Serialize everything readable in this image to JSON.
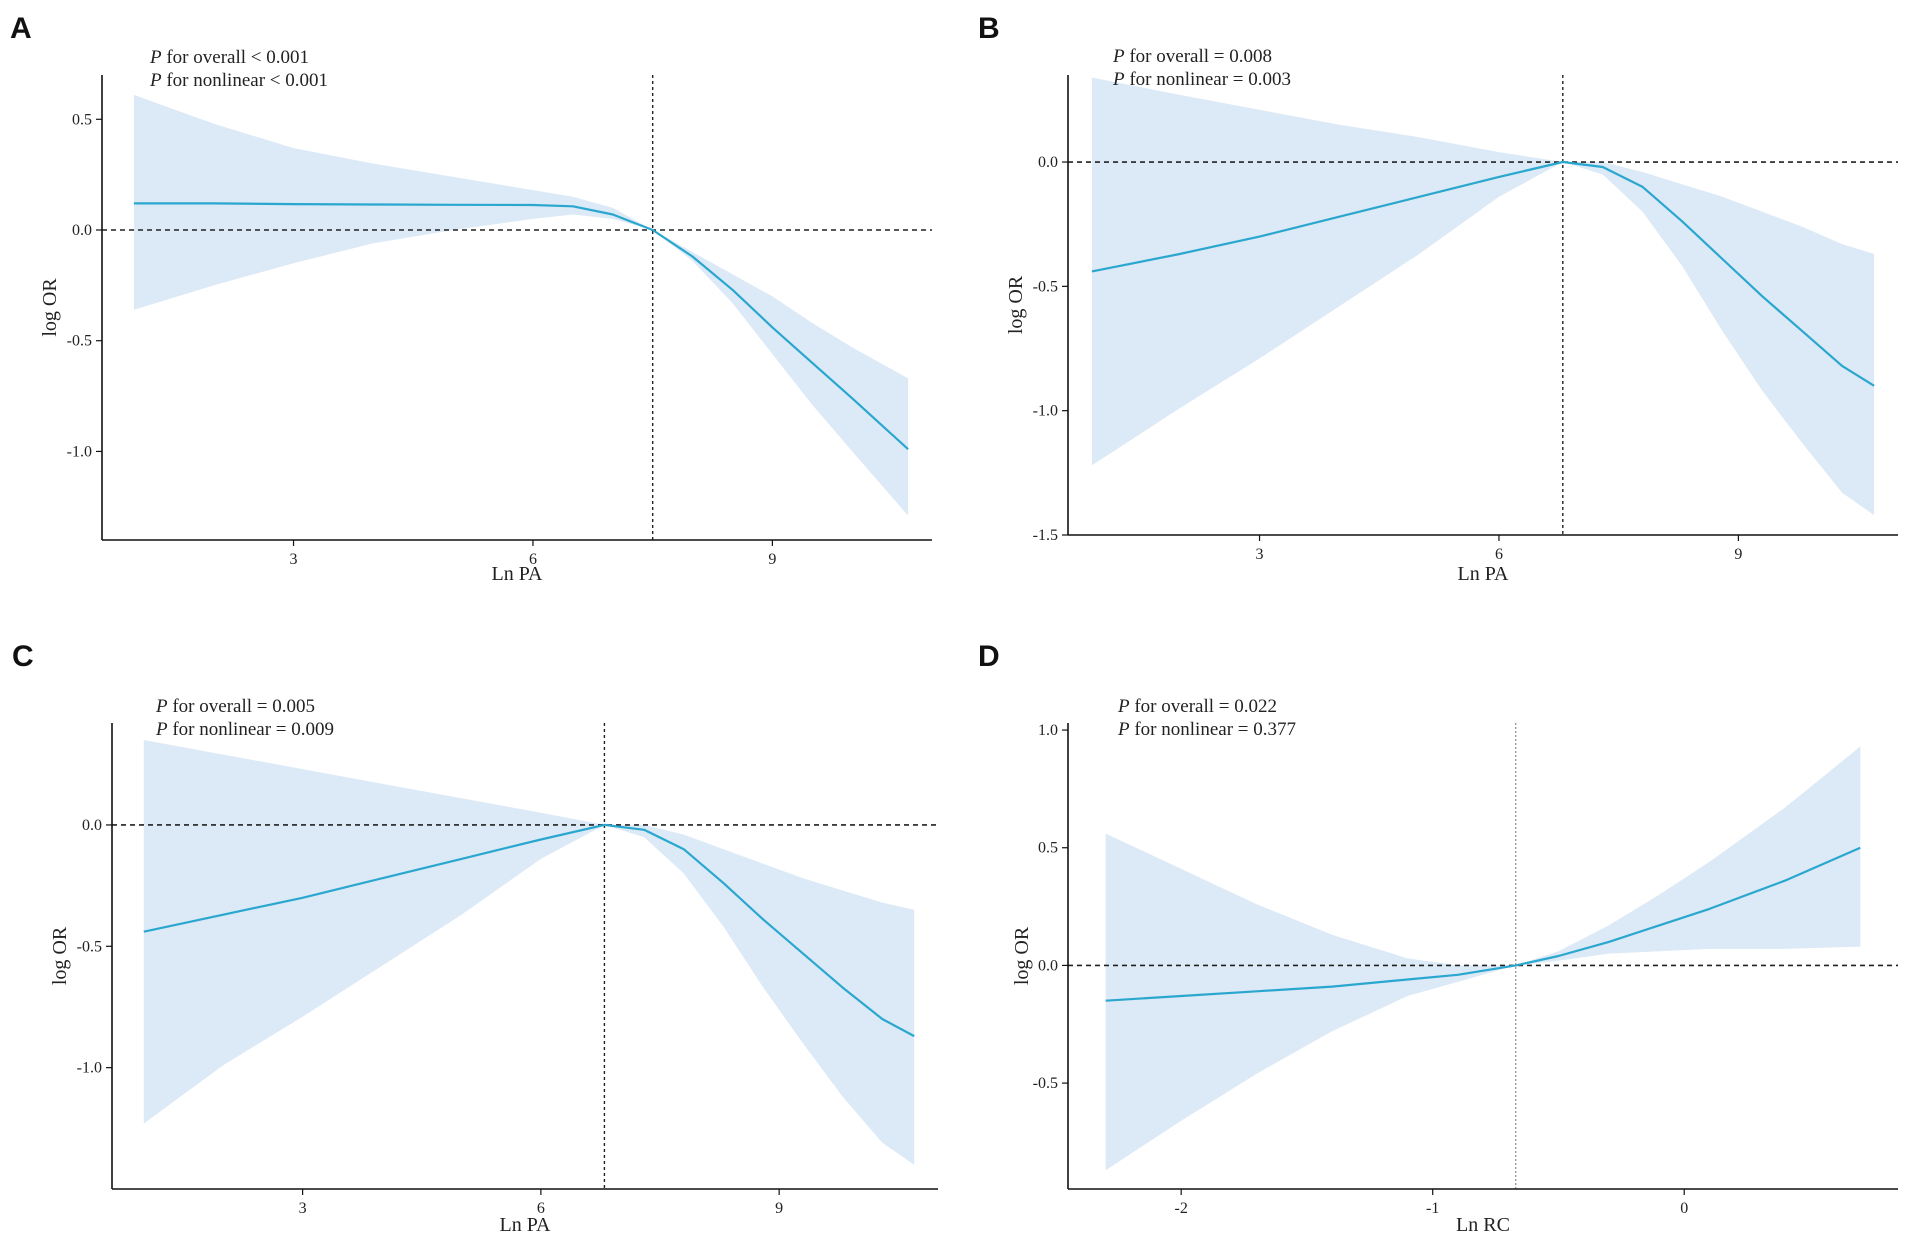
{
  "colors": {
    "line": "#2aa7cf",
    "band": "#dce9f6",
    "axis": "#111111",
    "ref": "#222222"
  },
  "chart_data": [
    {
      "panel": "A",
      "type": "line",
      "xlabel": "Ln PA",
      "ylabel": "log OR",
      "xlim": [
        0.6,
        11.0
      ],
      "ylim": [
        -1.4,
        0.7
      ],
      "xticks": [
        3,
        6,
        9
      ],
      "yticks": [
        0.5,
        0.0,
        -0.5,
        -1.0
      ],
      "ytick_labels": [
        "0.5",
        "0.0",
        "-0.5",
        "-1.0"
      ],
      "annotations": [
        {
          "p": "P",
          "text": " for overall < 0.001"
        },
        {
          "p": "P",
          "text": " for nonlinear < 0.001"
        }
      ],
      "vline": 7.5,
      "vline_style": "dark",
      "hline": 0,
      "x": [
        1.0,
        2.0,
        3.0,
        4.0,
        5.0,
        6.0,
        6.5,
        7.0,
        7.5,
        8.0,
        8.5,
        9.0,
        9.5,
        10.0,
        10.7
      ],
      "y": [
        0.12,
        0.12,
        0.117,
        0.115,
        0.114,
        0.113,
        0.107,
        0.07,
        0.0,
        -0.12,
        -0.27,
        -0.44,
        -0.6,
        -0.76,
        -0.99
      ],
      "lower": [
        -0.36,
        -0.25,
        -0.15,
        -0.06,
        0.0,
        0.05,
        0.07,
        0.05,
        0.0,
        -0.14,
        -0.33,
        -0.56,
        -0.79,
        -1.0,
        -1.29
      ],
      "upper": [
        0.61,
        0.48,
        0.37,
        0.3,
        0.24,
        0.18,
        0.15,
        0.1,
        0.0,
        -0.1,
        -0.2,
        -0.3,
        -0.42,
        -0.53,
        -0.67
      ]
    },
    {
      "panel": "B",
      "type": "line",
      "xlabel": "Ln PA",
      "ylabel": "log OR",
      "xlim": [
        0.6,
        11.0
      ],
      "ylim": [
        -1.5,
        0.35
      ],
      "xticks": [
        3,
        6,
        9
      ],
      "yticks": [
        0.0,
        -0.5,
        -1.0,
        -1.5
      ],
      "ytick_labels": [
        "0.0",
        "-0.5",
        "-1.0",
        "-1.5"
      ],
      "annotations": [
        {
          "p": "P",
          "text": " for overall = 0.008"
        },
        {
          "p": "P",
          "text": " for nonlinear = 0.003"
        }
      ],
      "vline": 6.8,
      "vline_style": "dark",
      "hline": 0,
      "x": [
        0.9,
        2.0,
        3.0,
        4.0,
        5.0,
        6.0,
        6.8,
        7.3,
        7.8,
        8.3,
        8.8,
        9.3,
        9.8,
        10.3,
        10.7
      ],
      "y": [
        -0.44,
        -0.37,
        -0.3,
        -0.22,
        -0.14,
        -0.06,
        0.0,
        -0.02,
        -0.1,
        -0.24,
        -0.39,
        -0.54,
        -0.68,
        -0.82,
        -0.9
      ],
      "lower": [
        -1.22,
        -0.99,
        -0.79,
        -0.58,
        -0.37,
        -0.14,
        0.0,
        -0.05,
        -0.2,
        -0.42,
        -0.68,
        -0.92,
        -1.13,
        -1.33,
        -1.42
      ],
      "upper": [
        0.34,
        0.27,
        0.21,
        0.15,
        0.1,
        0.04,
        0.0,
        0.0,
        -0.04,
        -0.09,
        -0.14,
        -0.2,
        -0.26,
        -0.33,
        -0.37
      ]
    },
    {
      "panel": "C",
      "type": "line",
      "xlabel": "Ln PA",
      "ylabel": "log OR",
      "xlim": [
        0.6,
        11.0
      ],
      "ylim": [
        -1.5,
        0.42
      ],
      "xticks": [
        3,
        6,
        9
      ],
      "yticks": [
        0.0,
        -0.5,
        -1.0
      ],
      "ytick_labels": [
        "0.0",
        "-0.5",
        "-1.0"
      ],
      "annotations": [
        {
          "p": "P",
          "text": " for overall = 0.005"
        },
        {
          "p": "P",
          "text": " for nonlinear = 0.009"
        }
      ],
      "vline": 6.8,
      "vline_style": "dark",
      "hline": 0,
      "x": [
        1.0,
        2.0,
        3.0,
        4.0,
        5.0,
        6.0,
        6.8,
        7.3,
        7.8,
        8.3,
        8.8,
        9.3,
        9.8,
        10.3,
        10.7
      ],
      "y": [
        -0.44,
        -0.37,
        -0.3,
        -0.22,
        -0.14,
        -0.06,
        0.0,
        -0.02,
        -0.1,
        -0.24,
        -0.39,
        -0.53,
        -0.67,
        -0.8,
        -0.87
      ],
      "lower": [
        -1.23,
        -0.99,
        -0.79,
        -0.58,
        -0.37,
        -0.14,
        0.0,
        -0.05,
        -0.2,
        -0.42,
        -0.67,
        -0.9,
        -1.12,
        -1.31,
        -1.4
      ],
      "upper": [
        0.35,
        0.29,
        0.23,
        0.17,
        0.11,
        0.05,
        0.0,
        0.0,
        -0.04,
        -0.1,
        -0.16,
        -0.22,
        -0.27,
        -0.32,
        -0.35
      ]
    },
    {
      "panel": "D",
      "type": "line",
      "xlabel": "Ln RC",
      "ylabel": "log OR",
      "xlim": [
        -2.45,
        0.85
      ],
      "ylim": [
        -0.95,
        1.03
      ],
      "xticks": [
        -2,
        -1,
        0
      ],
      "yticks": [
        1.0,
        0.5,
        0.0,
        -0.5
      ],
      "ytick_labels": [
        "1.0",
        "0.5",
        "0.0",
        "-0.5"
      ],
      "annotations": [
        {
          "p": "P",
          "text": " for overall = 0.022"
        },
        {
          "p": "P",
          "text": " for nonlinear = 0.377"
        }
      ],
      "vline": -0.67,
      "vline_style": "light",
      "hline": 0,
      "x": [
        -2.3,
        -2.0,
        -1.7,
        -1.4,
        -1.1,
        -0.9,
        -0.67,
        -0.5,
        -0.3,
        -0.1,
        0.1,
        0.4,
        0.7
      ],
      "y": [
        -0.15,
        -0.13,
        -0.11,
        -0.09,
        -0.06,
        -0.04,
        0.0,
        0.04,
        0.1,
        0.17,
        0.24,
        0.36,
        0.5
      ],
      "lower": [
        -0.87,
        -0.66,
        -0.46,
        -0.28,
        -0.13,
        -0.07,
        0.0,
        0.02,
        0.05,
        0.06,
        0.07,
        0.07,
        0.08
      ],
      "upper": [
        0.56,
        0.41,
        0.26,
        0.13,
        0.03,
        0.0,
        0.0,
        0.06,
        0.17,
        0.3,
        0.44,
        0.67,
        0.93
      ]
    }
  ]
}
